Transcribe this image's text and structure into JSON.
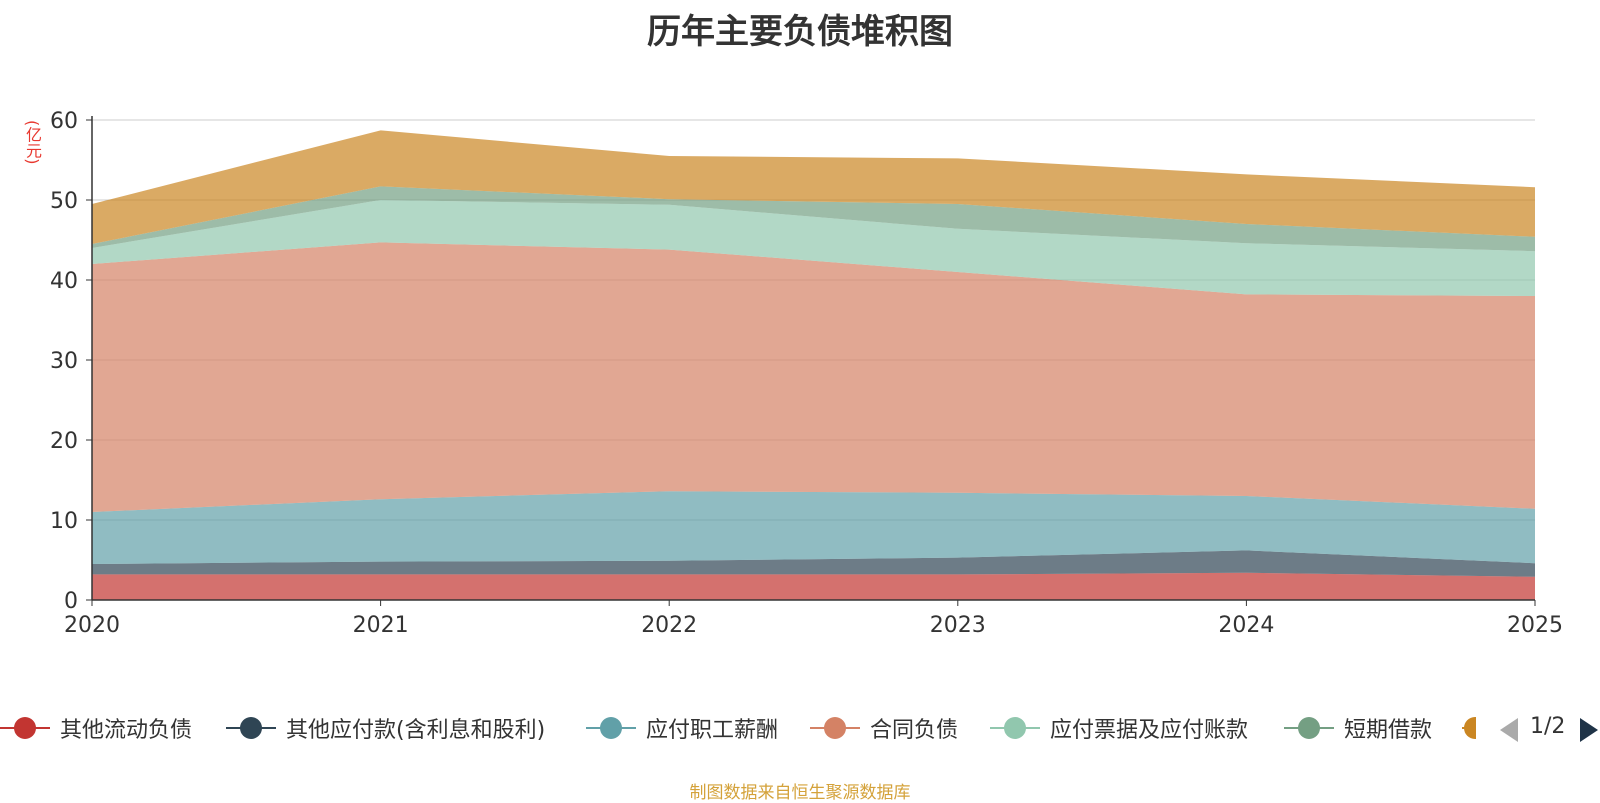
{
  "chart_data": {
    "type": "area",
    "stacked": true,
    "title": "历年主要负债堆积图",
    "ylabel": "(亿元)",
    "xlabel": "",
    "ylim": [
      0,
      60
    ],
    "yticks": [
      0,
      10,
      20,
      30,
      40,
      50,
      60
    ],
    "categories": [
      "2020",
      "2021",
      "2022",
      "2023",
      "2024",
      "2025"
    ],
    "grid": true,
    "legend_position": "bottom",
    "series": [
      {
        "name": "其他流动负债",
        "color": "#c23531",
        "values": [
          3.2,
          3.2,
          3.2,
          3.2,
          3.4,
          2.9
        ]
      },
      {
        "name": "其他应付款(含利息和股利)",
        "color": "#2f4554",
        "values": [
          1.3,
          1.6,
          1.7,
          2.1,
          2.8,
          1.7
        ]
      },
      {
        "name": "应付职工薪酬",
        "color": "#61a0a8",
        "values": [
          6.5,
          7.8,
          8.7,
          8.1,
          6.8,
          6.8
        ]
      },
      {
        "name": "合同负债",
        "color": "#d48265",
        "values": [
          31.0,
          32.1,
          30.2,
          27.6,
          25.2,
          26.6
        ]
      },
      {
        "name": "应付票据及应付账款",
        "color": "#91c7ae",
        "values": [
          2.0,
          5.3,
          5.6,
          5.4,
          6.4,
          5.6
        ]
      },
      {
        "name": "短期借款",
        "color": "#749f83",
        "values": [
          0.5,
          1.7,
          0.7,
          3.1,
          2.4,
          1.8
        ]
      },
      {
        "name": "",
        "color": "#ca8622",
        "values": [
          5.0,
          7.0,
          5.4,
          5.7,
          6.2,
          6.2
        ]
      }
    ]
  },
  "pager": {
    "text": "1/2"
  },
  "footer": {
    "source": "制图数据来自恒生聚源数据库"
  }
}
